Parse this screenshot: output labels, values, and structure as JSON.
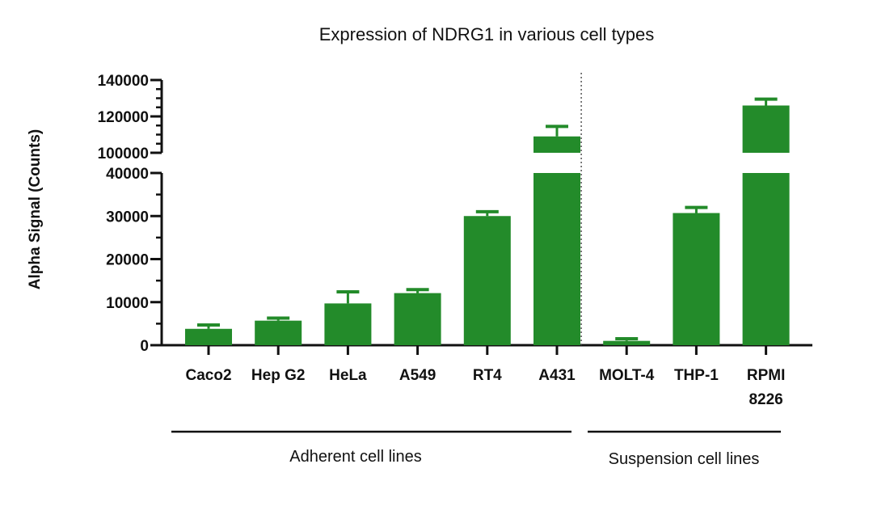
{
  "chart_data": {
    "type": "bar",
    "title": "Expression of NDRG1 in various cell types",
    "xlabel": "",
    "ylabel": "Alpha Signal (Counts)",
    "colors": {
      "bar": "#238b2a",
      "axis": "#111111",
      "divider": "#555555"
    },
    "categories": [
      "Caco2",
      "Hep G2",
      "HeLa",
      "A549",
      "RT4",
      "A431",
      "MOLT-4",
      "THP-1",
      "RPMI 8226"
    ],
    "category_lines": [
      [
        "Caco2"
      ],
      [
        "Hep G2"
      ],
      [
        "HeLa"
      ],
      [
        "A549"
      ],
      [
        "RT4"
      ],
      [
        "A431"
      ],
      [
        "MOLT-4"
      ],
      [
        "THP-1"
      ],
      [
        "RPMI",
        "8226"
      ]
    ],
    "series": [
      {
        "name": "NDRG1",
        "values": [
          3800,
          5700,
          9700,
          12100,
          30000,
          109000,
          1000,
          30700,
          126000
        ],
        "error": [
          900,
          600,
          2700,
          800,
          1000,
          5500,
          500,
          1300,
          3500
        ]
      }
    ],
    "y_axis_segments": [
      {
        "range": [
          0,
          40000
        ],
        "major_ticks": [
          0,
          10000,
          20000,
          30000,
          40000
        ],
        "tick_labels": [
          "0",
          "10000",
          "20000",
          "30000",
          "40000"
        ],
        "minor_step": 5000
      },
      {
        "range": [
          100000,
          140000
        ],
        "major_ticks": [
          100000,
          120000,
          140000
        ],
        "tick_labels": [
          "100000",
          "120000",
          "140000"
        ],
        "minor_step": 5000
      }
    ],
    "groups": [
      {
        "label": "Adherent cell lines",
        "categories": [
          "Caco2",
          "Hep G2",
          "HeLa",
          "A549",
          "RT4",
          "A431"
        ]
      },
      {
        "label": "Suspension cell lines",
        "categories": [
          "MOLT-4",
          "THP-1",
          "RPMI 8226"
        ]
      }
    ],
    "divider_between": [
      "A431",
      "MOLT-4"
    ],
    "grid": false,
    "legend": "none"
  }
}
